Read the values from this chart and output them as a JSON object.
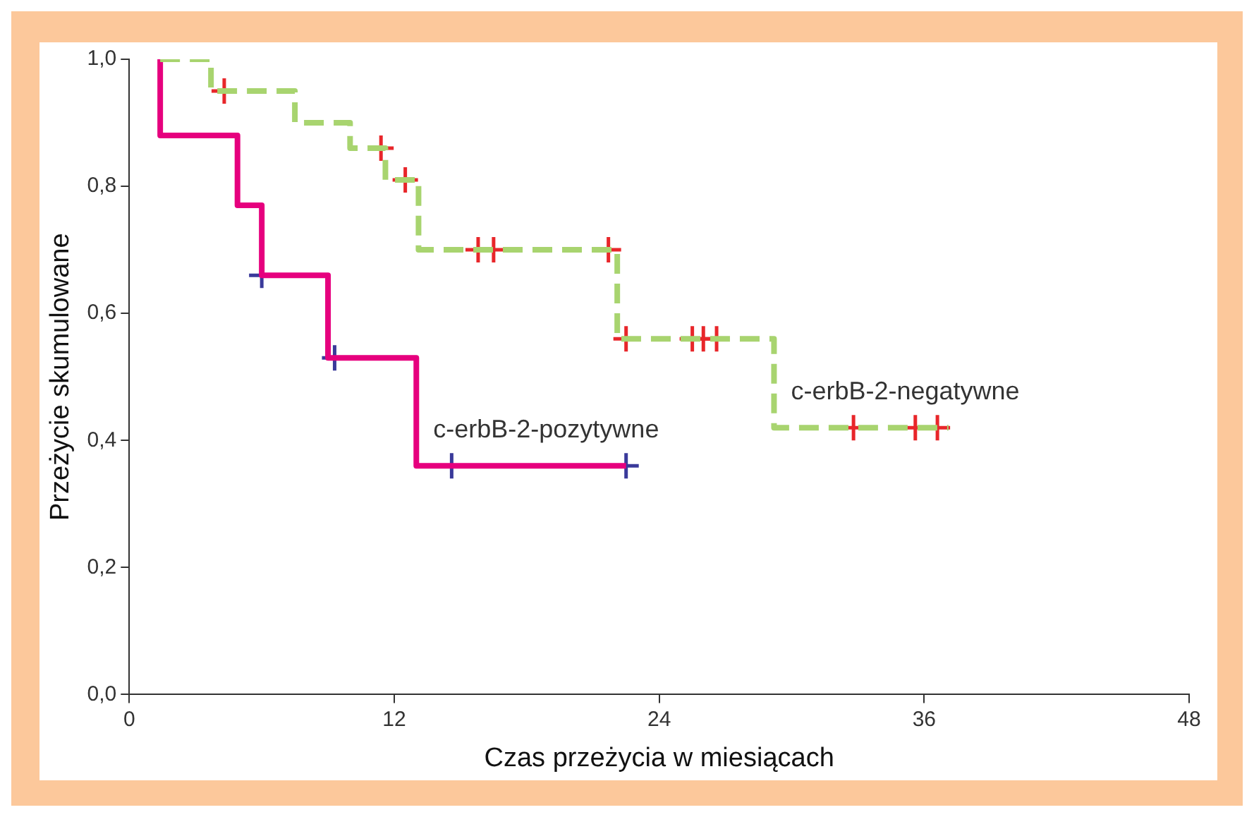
{
  "chart_data": {
    "type": "step",
    "xlabel": "Czas przeżycia w miesiącach",
    "ylabel": "Przeżycie skumulowane",
    "xlim": [
      0,
      48
    ],
    "xticks": [
      0,
      12,
      24,
      36,
      48
    ],
    "ylim": [
      0,
      1.0
    ],
    "yticks": [
      {
        "value": 0,
        "label": "0,0"
      },
      {
        "value": 0.2,
        "label": "0,2"
      },
      {
        "value": 0.4,
        "label": "0,4"
      },
      {
        "value": 0.6,
        "label": "0,6"
      },
      {
        "value": 0.8,
        "label": "0,8"
      },
      {
        "value": 1.0,
        "label": "1,0"
      }
    ],
    "grid": false,
    "legend": false,
    "series": [
      {
        "name": "c-erbB-2-negatywne",
        "color": "#a8d46f",
        "line_style": "dashed",
        "marker": "none",
        "x": [
          1.4,
          3.7,
          7.5,
          10.0,
          11.6,
          13.1,
          22.1,
          29.2,
          37.1
        ],
        "values": [
          1.0,
          0.95,
          0.9,
          0.86,
          0.81,
          0.7,
          0.56,
          0.42,
          0.42
        ]
      },
      {
        "name": "c-erbB-2-pozytywne",
        "color": "#e6007e",
        "line_style": "solid",
        "marker": "none",
        "x": [
          1.4,
          1.4,
          4.9,
          6.0,
          9.0,
          13.0,
          22.5
        ],
        "values": [
          1.0,
          0.88,
          0.77,
          0.66,
          0.53,
          0.36,
          0.36
        ]
      },
      {
        "type": "scatter",
        "color": "#e8262a",
        "marker": "cross",
        "x": [
          4.3,
          11.4,
          12.5,
          15.8,
          16.5,
          21.7,
          22.5,
          25.5,
          26.0,
          26.6,
          32.8,
          35.6,
          36.6
        ],
        "values": [
          0.95,
          0.86,
          0.81,
          0.7,
          0.7,
          0.7,
          0.56,
          0.56,
          0.56,
          0.56,
          0.42,
          0.42,
          0.42
        ]
      },
      {
        "type": "scatter",
        "color": "#3a3a9a",
        "marker": "cross",
        "x": [
          6.0,
          9.3,
          14.6,
          22.5
        ],
        "values": [
          0.66,
          0.53,
          0.36,
          0.36
        ]
      }
    ]
  }
}
